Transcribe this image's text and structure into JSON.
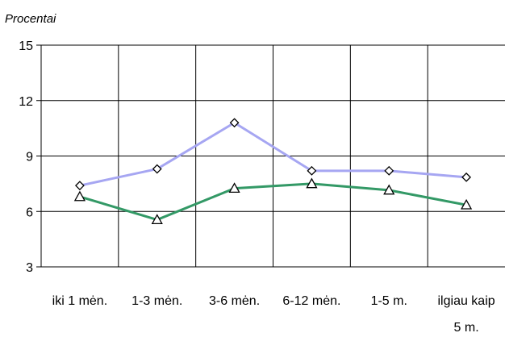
{
  "chart_data": {
    "type": "line",
    "title": "",
    "ylabel": "Procentai",
    "xlabel": "",
    "categories": [
      "iki 1 mėn.",
      "1-3 mėn.",
      "3-6 mėn.",
      "6-12 mėn.",
      "1-5 m.",
      "ilgiau kaip 5 m."
    ],
    "category_lines": [
      [
        "iki 1 mėn."
      ],
      [
        "1-3 mėn."
      ],
      [
        "3-6 mėn."
      ],
      [
        "6-12 mėn."
      ],
      [
        "1-5 m."
      ],
      [
        "ilgiau kaip",
        "5 m."
      ]
    ],
    "yticks": [
      "3",
      "6",
      "9",
      "12",
      "15"
    ],
    "ylim": [
      3,
      15
    ],
    "grid": true,
    "legend": "none",
    "series": [
      {
        "values": [
          7.4,
          8.3,
          10.8,
          8.2,
          8.2,
          7.85
        ],
        "color": "#a6a6f2",
        "marker": "diamond"
      },
      {
        "values": [
          6.8,
          5.55,
          7.25,
          7.5,
          7.15,
          6.35
        ],
        "color": "#339966",
        "marker": "triangle"
      }
    ]
  }
}
